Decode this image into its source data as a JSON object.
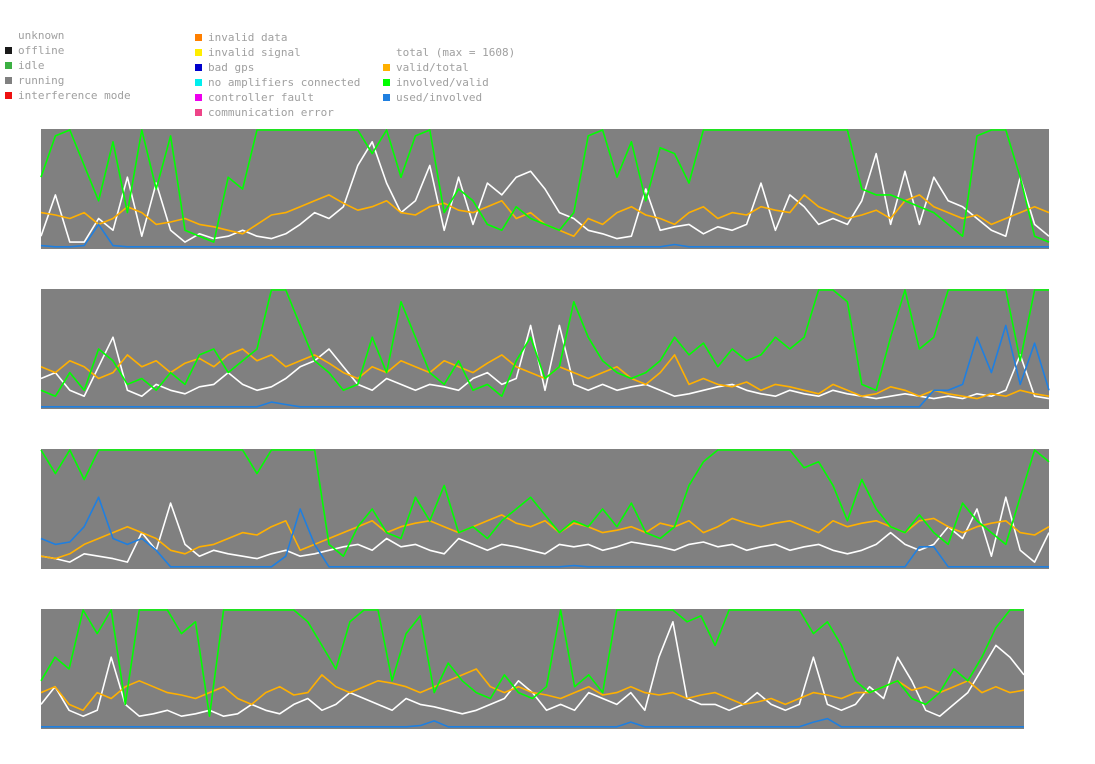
{
  "legend": {
    "status_col1": [
      {
        "label": "unknown",
        "color": "#ffffff"
      },
      {
        "label": "offline",
        "color": "#1a1a1a"
      },
      {
        "label": "idle",
        "color": "#3cb043"
      },
      {
        "label": "running",
        "color": "#808080"
      },
      {
        "label": "interference mode",
        "color": "#ee1111"
      }
    ],
    "status_col2": [
      {
        "label": "invalid data",
        "color": "#ff7f00"
      },
      {
        "label": "invalid signal",
        "color": "#ffee00"
      },
      {
        "label": "bad gps",
        "color": "#0000cc"
      },
      {
        "label": "no amplifiers connected",
        "color": "#00eeee"
      },
      {
        "label": "controller fault",
        "color": "#ee00ee"
      },
      {
        "label": "communication error",
        "color": "#ee4488"
      }
    ],
    "lines_col": [
      {
        "label": "total (max = 1608)",
        "color": "#ffffff"
      },
      {
        "label": "valid/total",
        "color": "#ffb000"
      },
      {
        "label": "involved/valid",
        "color": "#00ff00"
      },
      {
        "label": "used/involved",
        "color": "#1f7fe0"
      }
    ]
  },
  "chart_data": {
    "type": "line",
    "panel_count": 4,
    "y_range": [
      0,
      1
    ],
    "background_state": "running",
    "series_colors": {
      "total": "#ffffff",
      "valid_total": "#ffb000",
      "involved_valid": "#00ff00",
      "used_involved": "#1f7fe0"
    },
    "panels": [
      {
        "total": [
          0.1,
          0.45,
          0.05,
          0.05,
          0.25,
          0.15,
          0.6,
          0.1,
          0.55,
          0.15,
          0.05,
          0.12,
          0.08,
          0.1,
          0.15,
          0.1,
          0.08,
          0.12,
          0.2,
          0.3,
          0.25,
          0.35,
          0.7,
          0.9,
          0.55,
          0.3,
          0.4,
          0.7,
          0.15,
          0.6,
          0.2,
          0.55,
          0.45,
          0.6,
          0.65,
          0.5,
          0.3,
          0.25,
          0.15,
          0.12,
          0.08,
          0.1,
          0.5,
          0.15,
          0.18,
          0.2,
          0.12,
          0.18,
          0.15,
          0.2,
          0.55,
          0.15,
          0.45,
          0.35,
          0.2,
          0.25,
          0.2,
          0.4,
          0.8,
          0.2,
          0.65,
          0.2,
          0.6,
          0.4,
          0.35,
          0.25,
          0.15,
          0.1,
          0.6,
          0.2,
          0.1
        ],
        "valid_total": [
          0.3,
          0.28,
          0.25,
          0.3,
          0.2,
          0.25,
          0.35,
          0.3,
          0.2,
          0.22,
          0.25,
          0.2,
          0.18,
          0.15,
          0.12,
          0.2,
          0.28,
          0.3,
          0.35,
          0.4,
          0.45,
          0.38,
          0.32,
          0.35,
          0.4,
          0.3,
          0.28,
          0.35,
          0.38,
          0.32,
          0.3,
          0.35,
          0.4,
          0.25,
          0.3,
          0.2,
          0.15,
          0.1,
          0.25,
          0.2,
          0.3,
          0.35,
          0.28,
          0.25,
          0.2,
          0.3,
          0.35,
          0.25,
          0.3,
          0.28,
          0.35,
          0.32,
          0.3,
          0.45,
          0.35,
          0.3,
          0.25,
          0.28,
          0.32,
          0.25,
          0.4,
          0.45,
          0.35,
          0.3,
          0.25,
          0.28,
          0.2,
          0.25,
          0.3,
          0.35,
          0.3
        ],
        "involved_valid": [
          0.6,
          0.95,
          1.0,
          0.7,
          0.4,
          0.9,
          0.3,
          1.0,
          0.5,
          0.95,
          0.15,
          0.1,
          0.05,
          0.6,
          0.5,
          1.0,
          1.0,
          1.0,
          1.0,
          1.0,
          1.0,
          1.0,
          1.0,
          0.8,
          1.0,
          0.6,
          0.95,
          1.0,
          0.3,
          0.5,
          0.4,
          0.2,
          0.15,
          0.35,
          0.25,
          0.2,
          0.15,
          0.3,
          0.95,
          1.0,
          0.6,
          0.9,
          0.4,
          0.85,
          0.8,
          0.55,
          1.0,
          1.0,
          1.0,
          1.0,
          1.0,
          1.0,
          1.0,
          1.0,
          1.0,
          1.0,
          1.0,
          0.5,
          0.45,
          0.45,
          0.4,
          0.35,
          0.3,
          0.2,
          0.1,
          0.95,
          1.0,
          1.0,
          0.6,
          0.1,
          0.05
        ],
        "used_involved": [
          0.02,
          0.01,
          0.01,
          0.02,
          0.2,
          0.02,
          0.01,
          0.01,
          0.01,
          0.01,
          0.01,
          0.01,
          0.01,
          0.01,
          0.01,
          0.01,
          0.01,
          0.01,
          0.01,
          0.01,
          0.01,
          0.01,
          0.01,
          0.01,
          0.01,
          0.01,
          0.01,
          0.01,
          0.01,
          0.01,
          0.01,
          0.01,
          0.01,
          0.01,
          0.01,
          0.01,
          0.01,
          0.01,
          0.01,
          0.01,
          0.01,
          0.01,
          0.01,
          0.01,
          0.03,
          0.01,
          0.01,
          0.01,
          0.01,
          0.01,
          0.01,
          0.01,
          0.01,
          0.01,
          0.01,
          0.01,
          0.01,
          0.01,
          0.01,
          0.01,
          0.01,
          0.01,
          0.01,
          0.01,
          0.01,
          0.01,
          0.01,
          0.01,
          0.01,
          0.01,
          0.01
        ]
      },
      {
        "total": [
          0.25,
          0.3,
          0.15,
          0.1,
          0.35,
          0.6,
          0.15,
          0.1,
          0.2,
          0.15,
          0.12,
          0.18,
          0.2,
          0.3,
          0.2,
          0.15,
          0.18,
          0.25,
          0.35,
          0.4,
          0.5,
          0.35,
          0.2,
          0.15,
          0.25,
          0.2,
          0.15,
          0.2,
          0.18,
          0.15,
          0.25,
          0.3,
          0.2,
          0.25,
          0.7,
          0.15,
          0.7,
          0.2,
          0.15,
          0.2,
          0.15,
          0.18,
          0.2,
          0.15,
          0.1,
          0.12,
          0.15,
          0.18,
          0.2,
          0.15,
          0.12,
          0.1,
          0.15,
          0.12,
          0.1,
          0.15,
          0.12,
          0.1,
          0.08,
          0.1,
          0.12,
          0.1,
          0.08,
          0.1,
          0.08,
          0.12,
          0.1,
          0.15,
          0.45,
          0.1,
          0.08
        ],
        "valid_total": [
          0.35,
          0.3,
          0.4,
          0.35,
          0.25,
          0.3,
          0.45,
          0.35,
          0.4,
          0.3,
          0.38,
          0.42,
          0.35,
          0.45,
          0.5,
          0.4,
          0.45,
          0.35,
          0.4,
          0.45,
          0.38,
          0.3,
          0.25,
          0.35,
          0.3,
          0.4,
          0.35,
          0.3,
          0.4,
          0.35,
          0.3,
          0.38,
          0.45,
          0.35,
          0.3,
          0.25,
          0.35,
          0.3,
          0.25,
          0.3,
          0.35,
          0.25,
          0.2,
          0.3,
          0.45,
          0.2,
          0.25,
          0.2,
          0.18,
          0.22,
          0.15,
          0.2,
          0.18,
          0.15,
          0.12,
          0.2,
          0.15,
          0.1,
          0.12,
          0.18,
          0.15,
          0.1,
          0.15,
          0.12,
          0.1,
          0.08,
          0.12,
          0.1,
          0.15,
          0.12,
          0.1
        ],
        "involved_valid": [
          0.15,
          0.1,
          0.3,
          0.15,
          0.5,
          0.4,
          0.2,
          0.25,
          0.15,
          0.3,
          0.2,
          0.45,
          0.5,
          0.3,
          0.4,
          0.5,
          1.0,
          1.0,
          0.7,
          0.4,
          0.3,
          0.15,
          0.2,
          0.6,
          0.3,
          0.9,
          0.6,
          0.3,
          0.2,
          0.4,
          0.15,
          0.2,
          0.1,
          0.4,
          0.6,
          0.25,
          0.35,
          0.9,
          0.6,
          0.4,
          0.3,
          0.25,
          0.3,
          0.4,
          0.6,
          0.45,
          0.55,
          0.35,
          0.5,
          0.4,
          0.45,
          0.6,
          0.5,
          0.6,
          1.0,
          1.0,
          0.9,
          0.2,
          0.15,
          0.6,
          1.0,
          0.5,
          0.6,
          1.0,
          1.0,
          1.0,
          1.0,
          1.0,
          0.4,
          1.0,
          1.0
        ],
        "used_involved": [
          0.01,
          0.01,
          0.01,
          0.01,
          0.01,
          0.01,
          0.01,
          0.01,
          0.01,
          0.01,
          0.01,
          0.01,
          0.01,
          0.01,
          0.01,
          0.01,
          0.05,
          0.03,
          0.01,
          0.01,
          0.01,
          0.01,
          0.01,
          0.01,
          0.01,
          0.01,
          0.01,
          0.01,
          0.01,
          0.01,
          0.01,
          0.01,
          0.01,
          0.01,
          0.01,
          0.01,
          0.01,
          0.01,
          0.01,
          0.01,
          0.01,
          0.01,
          0.01,
          0.01,
          0.01,
          0.01,
          0.01,
          0.01,
          0.01,
          0.01,
          0.01,
          0.01,
          0.01,
          0.01,
          0.01,
          0.01,
          0.01,
          0.01,
          0.01,
          0.01,
          0.01,
          0.01,
          0.15,
          0.15,
          0.2,
          0.6,
          0.3,
          0.7,
          0.2,
          0.55,
          0.15
        ]
      },
      {
        "total": [
          0.1,
          0.08,
          0.05,
          0.12,
          0.1,
          0.08,
          0.05,
          0.3,
          0.15,
          0.55,
          0.2,
          0.1,
          0.15,
          0.12,
          0.1,
          0.08,
          0.12,
          0.15,
          0.1,
          0.12,
          0.15,
          0.18,
          0.2,
          0.15,
          0.25,
          0.18,
          0.2,
          0.15,
          0.12,
          0.25,
          0.2,
          0.15,
          0.2,
          0.18,
          0.15,
          0.12,
          0.2,
          0.18,
          0.2,
          0.15,
          0.18,
          0.22,
          0.2,
          0.18,
          0.15,
          0.2,
          0.22,
          0.18,
          0.2,
          0.15,
          0.18,
          0.2,
          0.15,
          0.18,
          0.2,
          0.15,
          0.12,
          0.15,
          0.2,
          0.3,
          0.2,
          0.15,
          0.2,
          0.35,
          0.25,
          0.5,
          0.1,
          0.6,
          0.15,
          0.05,
          0.3
        ],
        "valid_total": [
          0.1,
          0.08,
          0.12,
          0.2,
          0.25,
          0.3,
          0.35,
          0.3,
          0.25,
          0.15,
          0.12,
          0.18,
          0.2,
          0.25,
          0.3,
          0.28,
          0.35,
          0.4,
          0.15,
          0.2,
          0.25,
          0.3,
          0.35,
          0.4,
          0.3,
          0.35,
          0.38,
          0.4,
          0.35,
          0.3,
          0.35,
          0.4,
          0.45,
          0.38,
          0.35,
          0.4,
          0.3,
          0.38,
          0.35,
          0.3,
          0.32,
          0.35,
          0.3,
          0.38,
          0.35,
          0.4,
          0.3,
          0.35,
          0.42,
          0.38,
          0.35,
          0.38,
          0.4,
          0.35,
          0.3,
          0.4,
          0.35,
          0.38,
          0.4,
          0.35,
          0.3,
          0.4,
          0.42,
          0.35,
          0.3,
          0.35,
          0.38,
          0.4,
          0.3,
          0.28,
          0.35
        ],
        "involved_valid": [
          1.0,
          0.8,
          1.0,
          0.75,
          1.0,
          1.0,
          1.0,
          1.0,
          1.0,
          1.0,
          1.0,
          1.0,
          1.0,
          1.0,
          1.0,
          0.8,
          1.0,
          1.0,
          1.0,
          1.0,
          0.2,
          0.1,
          0.35,
          0.5,
          0.3,
          0.25,
          0.6,
          0.4,
          0.7,
          0.3,
          0.35,
          0.25,
          0.4,
          0.5,
          0.6,
          0.45,
          0.3,
          0.4,
          0.35,
          0.5,
          0.35,
          0.55,
          0.3,
          0.25,
          0.35,
          0.7,
          0.9,
          1.0,
          1.0,
          1.0,
          1.0,
          1.0,
          1.0,
          0.85,
          0.9,
          0.7,
          0.4,
          0.75,
          0.5,
          0.35,
          0.3,
          0.45,
          0.3,
          0.2,
          0.55,
          0.4,
          0.3,
          0.2,
          0.6,
          1.0,
          0.9
        ],
        "used_involved": [
          0.25,
          0.2,
          0.22,
          0.35,
          0.6,
          0.25,
          0.2,
          0.25,
          0.15,
          0.01,
          0.01,
          0.01,
          0.01,
          0.01,
          0.01,
          0.01,
          0.01,
          0.1,
          0.5,
          0.2,
          0.01,
          0.01,
          0.01,
          0.01,
          0.01,
          0.01,
          0.01,
          0.01,
          0.01,
          0.01,
          0.01,
          0.01,
          0.01,
          0.01,
          0.01,
          0.01,
          0.01,
          0.02,
          0.01,
          0.01,
          0.01,
          0.01,
          0.01,
          0.01,
          0.01,
          0.01,
          0.01,
          0.01,
          0.01,
          0.01,
          0.01,
          0.01,
          0.01,
          0.01,
          0.01,
          0.01,
          0.01,
          0.01,
          0.01,
          0.01,
          0.01,
          0.18,
          0.18,
          0.01,
          0.01,
          0.01,
          0.01,
          0.01,
          0.01,
          0.01,
          0.01
        ]
      },
      {
        "total": [
          0.2,
          0.35,
          0.15,
          0.1,
          0.15,
          0.6,
          0.2,
          0.1,
          0.12,
          0.15,
          0.1,
          0.12,
          0.15,
          0.1,
          0.12,
          0.2,
          0.15,
          0.12,
          0.2,
          0.25,
          0.15,
          0.2,
          0.3,
          0.25,
          0.2,
          0.15,
          0.25,
          0.2,
          0.18,
          0.15,
          0.12,
          0.15,
          0.2,
          0.25,
          0.4,
          0.3,
          0.15,
          0.2,
          0.15,
          0.3,
          0.25,
          0.2,
          0.3,
          0.15,
          0.6,
          0.9,
          0.25,
          0.2,
          0.2,
          0.15,
          0.2,
          0.3,
          0.2,
          0.15,
          0.2,
          0.6,
          0.2,
          0.15,
          0.2,
          0.35,
          0.25,
          0.6,
          0.4,
          0.15,
          0.1,
          0.2,
          0.3,
          0.5,
          0.7,
          0.6,
          0.45
        ],
        "valid_total": [
          0.3,
          0.35,
          0.2,
          0.15,
          0.3,
          0.25,
          0.35,
          0.4,
          0.35,
          0.3,
          0.28,
          0.25,
          0.3,
          0.35,
          0.25,
          0.2,
          0.3,
          0.35,
          0.28,
          0.3,
          0.45,
          0.35,
          0.3,
          0.35,
          0.4,
          0.38,
          0.35,
          0.3,
          0.35,
          0.4,
          0.45,
          0.5,
          0.35,
          0.3,
          0.35,
          0.3,
          0.28,
          0.25,
          0.3,
          0.35,
          0.28,
          0.3,
          0.35,
          0.3,
          0.28,
          0.3,
          0.25,
          0.28,
          0.3,
          0.25,
          0.2,
          0.22,
          0.25,
          0.2,
          0.25,
          0.3,
          0.28,
          0.25,
          0.3,
          0.3,
          0.35,
          0.4,
          0.32,
          0.35,
          0.3,
          0.35,
          0.4,
          0.3,
          0.35,
          0.3,
          0.32
        ],
        "involved_valid": [
          0.4,
          0.6,
          0.5,
          1.0,
          0.8,
          1.0,
          0.2,
          1.0,
          1.0,
          1.0,
          0.8,
          0.9,
          0.1,
          1.0,
          1.0,
          1.0,
          1.0,
          1.0,
          1.0,
          0.9,
          0.7,
          0.5,
          0.9,
          1.0,
          1.0,
          0.4,
          0.8,
          0.95,
          0.3,
          0.55,
          0.4,
          0.3,
          0.25,
          0.45,
          0.3,
          0.25,
          0.35,
          1.0,
          0.35,
          0.45,
          0.3,
          1.0,
          1.0,
          1.0,
          1.0,
          1.0,
          0.9,
          0.95,
          0.7,
          1.0,
          1.0,
          1.0,
          1.0,
          1.0,
          1.0,
          0.8,
          0.9,
          0.7,
          0.4,
          0.3,
          0.35,
          0.4,
          0.25,
          0.2,
          0.3,
          0.5,
          0.4,
          0.6,
          0.85,
          1.0,
          1.0
        ],
        "used_involved": [
          0.01,
          0.01,
          0.01,
          0.01,
          0.01,
          0.01,
          0.01,
          0.01,
          0.01,
          0.01,
          0.01,
          0.01,
          0.01,
          0.01,
          0.01,
          0.01,
          0.01,
          0.01,
          0.01,
          0.01,
          0.01,
          0.01,
          0.01,
          0.01,
          0.01,
          0.01,
          0.01,
          0.02,
          0.06,
          0.01,
          0.01,
          0.01,
          0.01,
          0.01,
          0.01,
          0.01,
          0.01,
          0.01,
          0.01,
          0.01,
          0.01,
          0.01,
          0.05,
          0.01,
          0.01,
          0.01,
          0.01,
          0.01,
          0.01,
          0.01,
          0.01,
          0.01,
          0.01,
          0.01,
          0.01,
          0.05,
          0.08,
          0.01,
          0.01,
          0.01,
          0.01,
          0.01,
          0.01,
          0.01,
          0.01,
          0.01,
          0.01,
          0.01,
          0.01,
          0.01,
          0.01
        ]
      }
    ]
  }
}
